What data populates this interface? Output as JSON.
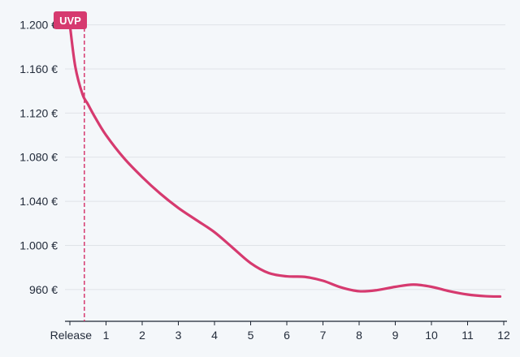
{
  "chart_data": {
    "type": "line",
    "xlabel": "",
    "ylabel": "",
    "x_ticks": [
      {
        "value": 0,
        "label": "Release"
      },
      {
        "value": 1,
        "label": "1"
      },
      {
        "value": 2,
        "label": "2"
      },
      {
        "value": 3,
        "label": "3"
      },
      {
        "value": 4,
        "label": "4"
      },
      {
        "value": 5,
        "label": "5"
      },
      {
        "value": 6,
        "label": "6"
      },
      {
        "value": 7,
        "label": "7"
      },
      {
        "value": 8,
        "label": "8"
      },
      {
        "value": 9,
        "label": "9"
      },
      {
        "value": 10,
        "label": "10"
      },
      {
        "value": 11,
        "label": "11"
      },
      {
        "value": 12,
        "label": "12"
      }
    ],
    "y_ticks": [
      {
        "value": 960,
        "label": "960 €"
      },
      {
        "value": 1000,
        "label": "1.000 €"
      },
      {
        "value": 1040,
        "label": "1.040 €"
      },
      {
        "value": 1080,
        "label": "1.080 €"
      },
      {
        "value": 1120,
        "label": "1.120 €"
      },
      {
        "value": 1160,
        "label": "1.160 €"
      },
      {
        "value": 1200,
        "label": "1.200 €"
      }
    ],
    "xlim": [
      0,
      12
    ],
    "ylim": [
      943,
      1210
    ],
    "grid": "horizontal",
    "series": [
      {
        "color": "#d63a6f",
        "points": [
          [
            0.0,
            1200
          ],
          [
            0.15,
            1162
          ],
          [
            0.35,
            1137
          ],
          [
            0.5,
            1128
          ],
          [
            0.7,
            1116
          ],
          [
            1.0,
            1100
          ],
          [
            1.5,
            1079
          ],
          [
            2.0,
            1062
          ],
          [
            2.5,
            1047
          ],
          [
            3.0,
            1034
          ],
          [
            3.5,
            1023
          ],
          [
            4.0,
            1012
          ],
          [
            4.5,
            998
          ],
          [
            5.0,
            984
          ],
          [
            5.5,
            975
          ],
          [
            6.0,
            972
          ],
          [
            6.5,
            971.5
          ],
          [
            7.0,
            968
          ],
          [
            7.5,
            962
          ],
          [
            8.0,
            958.5
          ],
          [
            8.5,
            959.5
          ],
          [
            9.0,
            962.5
          ],
          [
            9.5,
            964.5
          ],
          [
            10.0,
            962.5
          ],
          [
            10.5,
            958.5
          ],
          [
            11.0,
            955.5
          ],
          [
            11.5,
            954
          ],
          [
            11.9,
            953.7
          ]
        ]
      }
    ],
    "annotations": {
      "uvp_label": "UVP",
      "uvp_value": 1200,
      "marker_x": 0.4,
      "colors": {
        "accent": "#d63a6f",
        "background": "#f4f7fa",
        "grid": "#dfe3e8",
        "axis": "#1c2533",
        "text": "#222b3a"
      }
    }
  }
}
